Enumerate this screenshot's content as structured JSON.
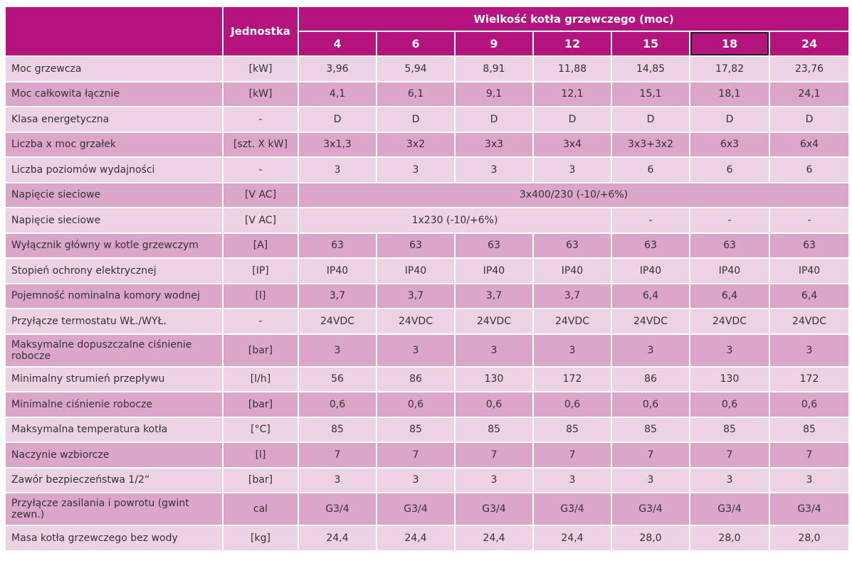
{
  "header": {
    "unit_label": "Jednostka",
    "group_label": "Wielkość kotła grzewczego (moc)",
    "sizes": [
      "4",
      "6",
      "9",
      "12",
      "15",
      "18",
      "24"
    ]
  },
  "rows": [
    {
      "label": "Moc grzewcza",
      "unit": "[kW]",
      "values": [
        "3,96",
        "5,94",
        "8,91",
        "11,88",
        "14,85",
        "17,82",
        "23,76"
      ]
    },
    {
      "label": "Moc całkowita łącznie",
      "unit": "[kW]",
      "values": [
        "4,1",
        "6,1",
        "9,1",
        "12,1",
        "15,1",
        "18,1",
        "24,1"
      ]
    },
    {
      "label": "Klasa energetyczna",
      "unit": "-",
      "values": [
        "D",
        "D",
        "D",
        "D",
        "D",
        "D",
        "D"
      ]
    },
    {
      "label": "Liczba x moc grzałek",
      "unit": "[szt. X kW]",
      "values": [
        "3x1,3",
        "3x2",
        "3x3",
        "3x4",
        "3x3+3x2",
        "6x3",
        "6x4"
      ]
    },
    {
      "label": "Liczba poziomów wydajności",
      "unit": "-",
      "values": [
        "3",
        "3",
        "3",
        "3",
        "6",
        "6",
        "6"
      ]
    },
    {
      "label": "Napięcie sieciowe",
      "unit": "[V AC]",
      "merged": "3x400/230 (-10/+6%)"
    },
    {
      "label": "Napięcie sieciowe",
      "unit": "[V AC]",
      "merged4": "1x230 (-10/+6%)",
      "values_rest": [
        "-",
        "-",
        "-"
      ]
    },
    {
      "label": "Wyłącznik główny w kotle grzewczym",
      "unit": "[A]",
      "values": [
        "63",
        "63",
        "63",
        "63",
        "63",
        "63",
        "63"
      ]
    },
    {
      "label": "Stopień ochrony elektrycznej",
      "unit": "[IP]",
      "values": [
        "IP40",
        "IP40",
        "IP40",
        "IP40",
        "IP40",
        "IP40",
        "IP40"
      ]
    },
    {
      "label": "Pojemność nominalna komory wodnej",
      "unit": "[l]",
      "values": [
        "3,7",
        "3,7",
        "3,7",
        "3,7",
        "6,4",
        "6,4",
        "6,4"
      ]
    },
    {
      "label": "Przyłącze termostatu WŁ./WYŁ.",
      "unit": "-",
      "values": [
        "24VDC",
        "24VDC",
        "24VDC",
        "24VDC",
        "24VDC",
        "24VDC",
        "24VDC"
      ]
    },
    {
      "label": "Maksymalne dopuszczalne ciśnienie robocze",
      "unit": "[bar]",
      "values": [
        "3",
        "3",
        "3",
        "3",
        "3",
        "3",
        "3"
      ]
    },
    {
      "label": "Minimalny strumień przepływu",
      "unit": "[l/h]",
      "values": [
        "56",
        "86",
        "130",
        "172",
        "86",
        "130",
        "172"
      ]
    },
    {
      "label": "Minimalne ciśnienie robocze",
      "unit": "[bar]",
      "values": [
        "0,6",
        "0,6",
        "0,6",
        "0,6",
        "0,6",
        "0,6",
        "0,6"
      ]
    },
    {
      "label": "Maksymalna temperatura kotła",
      "unit": "[°C]",
      "values": [
        "85",
        "85",
        "85",
        "85",
        "85",
        "85",
        "85"
      ]
    },
    {
      "label": "Naczynie wzbiorcze",
      "unit": "[l]",
      "values": [
        "7",
        "7",
        "7",
        "7",
        "7",
        "7",
        "7"
      ]
    },
    {
      "label": "Zawór bezpieczeństwa 1/2“",
      "unit": "[bar]",
      "values": [
        "3",
        "3",
        "3",
        "3",
        "3",
        "3",
        "3"
      ]
    },
    {
      "label": "Przyłącze zasilania i powrotu (gwint zewn.)",
      "unit": "cal",
      "values": [
        "G3/4",
        "G3/4",
        "G3/4",
        "G3/4",
        "G3/4",
        "G3/4",
        "G3/4"
      ]
    },
    {
      "label": "Masa kotła grzewczego bez wody",
      "unit": "[kg]",
      "values": [
        "24,4",
        "24,4",
        "24,4",
        "24,4",
        "28,0",
        "28,0",
        "28,0"
      ]
    }
  ]
}
